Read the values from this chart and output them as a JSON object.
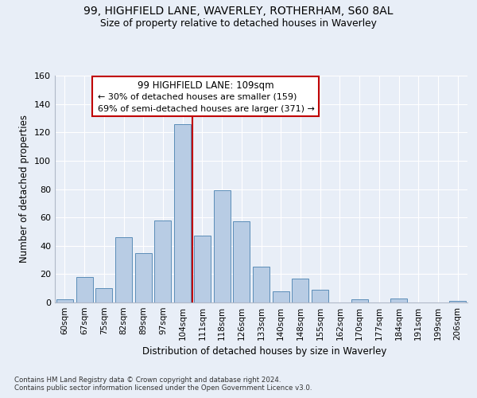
{
  "title1": "99, HIGHFIELD LANE, WAVERLEY, ROTHERHAM, S60 8AL",
  "title2": "Size of property relative to detached houses in Waverley",
  "xlabel": "Distribution of detached houses by size in Waverley",
  "ylabel": "Number of detached properties",
  "footnote1": "Contains HM Land Registry data © Crown copyright and database right 2024.",
  "footnote2": "Contains public sector information licensed under the Open Government Licence v3.0.",
  "categories": [
    "60sqm",
    "67sqm",
    "75sqm",
    "82sqm",
    "89sqm",
    "97sqm",
    "104sqm",
    "111sqm",
    "118sqm",
    "126sqm",
    "133sqm",
    "140sqm",
    "148sqm",
    "155sqm",
    "162sqm",
    "170sqm",
    "177sqm",
    "184sqm",
    "191sqm",
    "199sqm",
    "206sqm"
  ],
  "values": [
    2,
    18,
    10,
    46,
    35,
    58,
    126,
    47,
    79,
    57,
    25,
    8,
    17,
    9,
    0,
    2,
    0,
    3,
    0,
    0,
    1
  ],
  "bar_color": "#b8cce4",
  "bar_edge_color": "#5b8db8",
  "highlight_color": "#c00000",
  "annotation_line": "99 HIGHFIELD LANE: 109sqm",
  "annotation_left": "← 30% of detached houses are smaller (159)",
  "annotation_right": "69% of semi-detached houses are larger (371) →",
  "annotation_box_color": "#c00000",
  "ylim": [
    0,
    160
  ],
  "yticks": [
    0,
    20,
    40,
    60,
    80,
    100,
    120,
    140,
    160
  ],
  "bg_color": "#e8eef7",
  "plot_bg_color": "#e8eef7",
  "grid_color": "#ffffff",
  "vline_x": 6.5
}
